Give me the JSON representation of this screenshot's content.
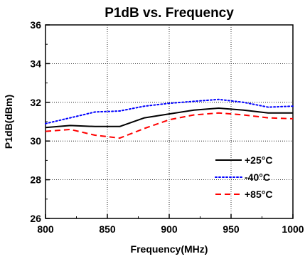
{
  "chart_data": {
    "type": "line",
    "title": "P1dB vs. Frequency",
    "xlabel": "Frequency(MHz)",
    "ylabel": "P1dB(dBm)",
    "xlim": [
      800,
      1000
    ],
    "ylim": [
      26,
      36
    ],
    "x_ticks": [
      "800",
      "850",
      "900",
      "950",
      "1000"
    ],
    "y_ticks": [
      "26",
      "28",
      "30",
      "32",
      "34",
      "36"
    ],
    "grid": true,
    "legend_position": "bottom-right",
    "series": [
      {
        "name": "+25°C",
        "color": "#000000",
        "style": "solid",
        "x": [
          800,
          820,
          840,
          860,
          880,
          900,
          920,
          940,
          960,
          980,
          1000
        ],
        "y": [
          30.7,
          30.8,
          30.75,
          30.75,
          31.2,
          31.4,
          31.6,
          31.7,
          31.6,
          31.45,
          31.45
        ]
      },
      {
        "name": "-40°C",
        "color": "#0000ff",
        "style": "dotted",
        "x": [
          800,
          820,
          840,
          860,
          880,
          900,
          920,
          940,
          960,
          980,
          1000
        ],
        "y": [
          30.9,
          31.2,
          31.5,
          31.55,
          31.8,
          31.95,
          32.05,
          32.15,
          32.0,
          31.75,
          31.8
        ]
      },
      {
        "name": "+85°C",
        "color": "#ff0000",
        "style": "dashed",
        "x": [
          800,
          820,
          840,
          860,
          880,
          900,
          920,
          940,
          960,
          980,
          1000
        ],
        "y": [
          30.5,
          30.6,
          30.3,
          30.15,
          30.65,
          31.1,
          31.35,
          31.45,
          31.35,
          31.2,
          31.15
        ]
      }
    ]
  }
}
